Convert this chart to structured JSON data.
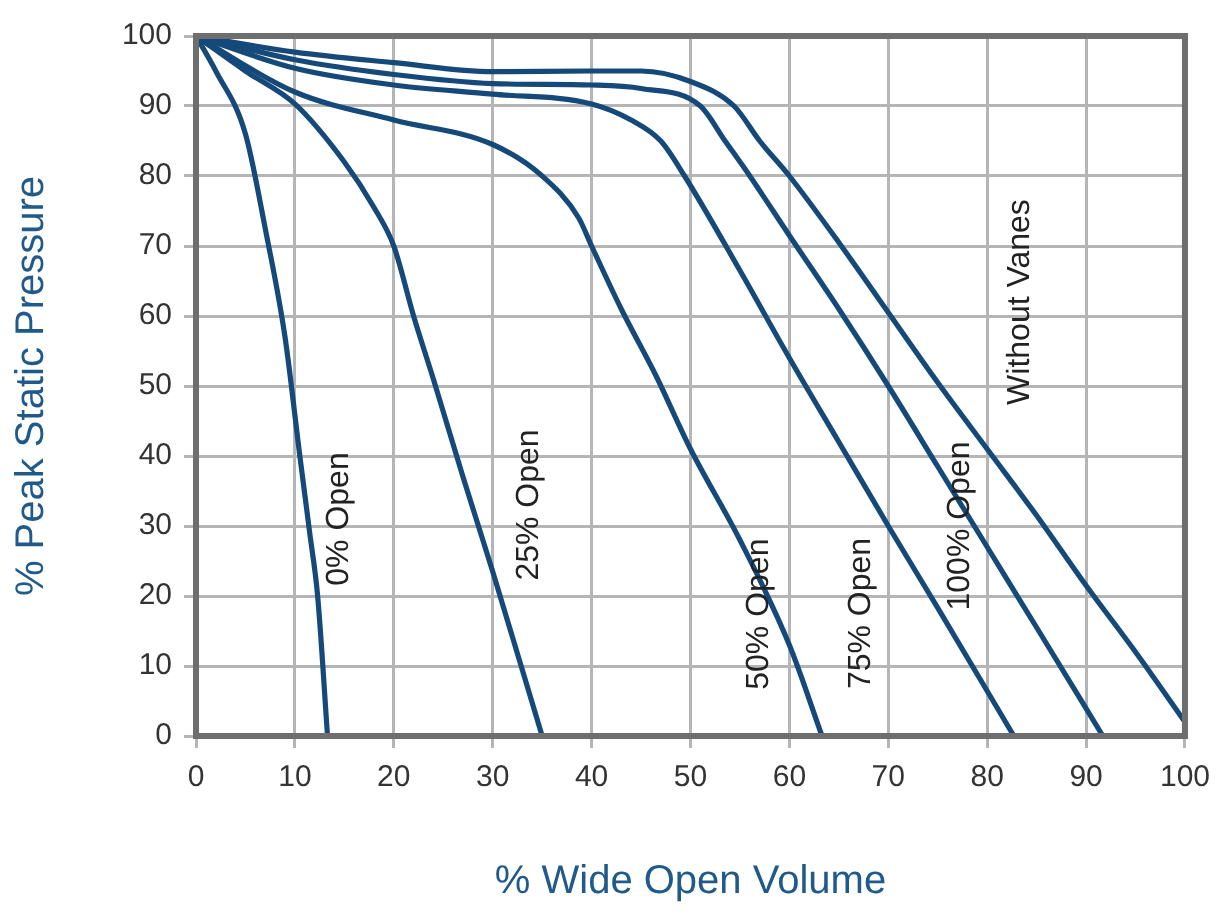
{
  "chart_data": {
    "type": "line",
    "xlabel": "% Wide Open Volume",
    "ylabel": "% Peak Static Pressure",
    "xlim": [
      0,
      100
    ],
    "ylim": [
      0,
      100
    ],
    "xticks": [
      0,
      10,
      20,
      30,
      40,
      50,
      60,
      70,
      80,
      90,
      100
    ],
    "yticks": [
      0,
      10,
      20,
      30,
      40,
      50,
      60,
      70,
      80,
      90,
      100
    ],
    "grid": true,
    "legend": false,
    "marker": "none",
    "line_style": "solid",
    "series": [
      {
        "name": "0% Open",
        "color": "#15497a",
        "x": [
          0,
          2,
          5,
          7,
          9,
          10.5,
          11.5,
          12.3,
          13.3
        ],
        "values": [
          100,
          95,
          86,
          72.5,
          57,
          40,
          29,
          20,
          0
        ]
      },
      {
        "name": "25% Open",
        "color": "#15497a",
        "x": [
          0,
          5,
          10,
          15,
          18,
          20,
          22,
          24,
          27,
          30,
          35
        ],
        "values": [
          100,
          95,
          90.3,
          82,
          75.5,
          70,
          60,
          51,
          37,
          23.5,
          0
        ]
      },
      {
        "name": "50% Open",
        "color": "#15497a",
        "x": [
          0,
          10,
          20,
          30,
          35,
          38.7,
          40,
          43,
          46.5,
          50,
          55,
          60,
          63.3
        ],
        "values": [
          100,
          92,
          88,
          84.5,
          80,
          74,
          70,
          61,
          51.5,
          41,
          28,
          13,
          0
        ]
      },
      {
        "name": "75% Open",
        "color": "#15497a",
        "x": [
          0,
          10,
          20,
          30,
          40,
          44,
          47,
          49.4,
          55,
          60,
          65,
          70,
          75,
          82.7
        ],
        "values": [
          100,
          95.4,
          93,
          91.7,
          90.3,
          88,
          85,
          80,
          66.5,
          54,
          42,
          30,
          18.3,
          0
        ]
      },
      {
        "name": "100% Open",
        "color": "#15497a",
        "x": [
          0,
          10,
          20,
          30,
          40,
          45,
          51,
          53.5,
          56,
          60,
          65,
          70,
          75,
          80,
          85,
          91.7
        ],
        "values": [
          100,
          96.6,
          94.5,
          93.2,
          93,
          92.5,
          90,
          85,
          80,
          71.5,
          61,
          50,
          38.5,
          27,
          15.5,
          0
        ]
      },
      {
        "name": "Without Vanes",
        "color": "#15497a",
        "x": [
          0,
          10,
          20,
          30,
          40,
          45,
          50,
          54.4,
          57,
          60,
          65,
          70,
          75,
          80,
          85,
          90,
          95,
          100
        ],
        "values": [
          100,
          97.7,
          96.2,
          94.9,
          95,
          95,
          93.5,
          90,
          85,
          80,
          70.5,
          60.5,
          50.5,
          41,
          31.5,
          21.5,
          12,
          2
        ]
      }
    ]
  }
}
